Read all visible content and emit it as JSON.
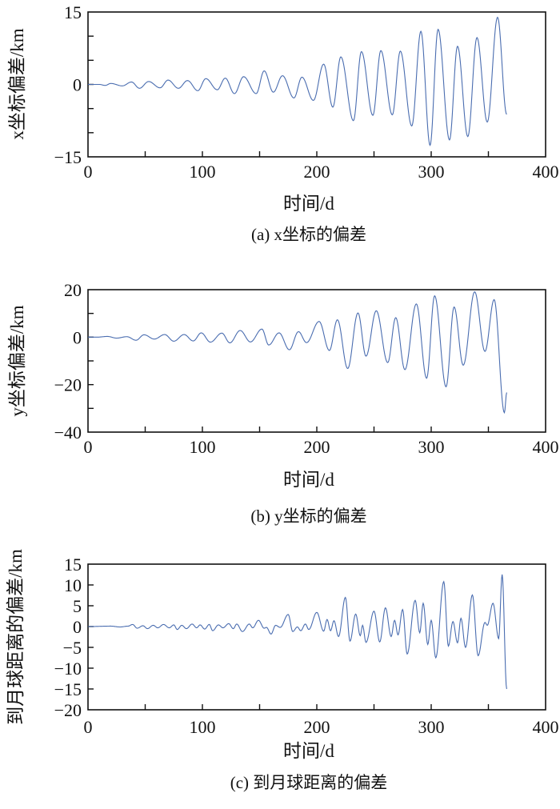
{
  "chart_data": [
    {
      "type": "line",
      "title": "",
      "caption": "(a) x坐标的偏差",
      "xlabel": "时间/d",
      "ylabel": "x坐标偏差/km",
      "xlim": [
        0,
        400
      ],
      "ylim": [
        -15,
        15
      ],
      "xticks": [
        0,
        100,
        200,
        300,
        400
      ],
      "xminor": [
        50,
        150,
        250,
        350
      ],
      "yticks": [
        -15,
        0,
        15
      ],
      "yminor": [
        -10,
        -5,
        5,
        10
      ],
      "grid": false,
      "color": "#4a6db0",
      "series": [
        {
          "name": "x",
          "extrema": [
            [
              0,
              0
            ],
            [
              10,
              0
            ],
            [
              15,
              -0.2
            ],
            [
              20,
              0.2
            ],
            [
              30,
              -0.3
            ],
            [
              38,
              0.5
            ],
            [
              45,
              -0.8
            ],
            [
              53,
              0.6
            ],
            [
              63,
              -0.7
            ],
            [
              70,
              0.9
            ],
            [
              79,
              -0.8
            ],
            [
              87,
              0.8
            ],
            [
              96,
              -1.3
            ],
            [
              103,
              1.2
            ],
            [
              113,
              -1.1
            ],
            [
              120,
              1.3
            ],
            [
              128,
              -1.9
            ],
            [
              136,
              1.6
            ],
            [
              147,
              -1.9
            ],
            [
              154,
              2.8
            ],
            [
              162,
              -1.6
            ],
            [
              170,
              1.8
            ],
            [
              180,
              -2.8
            ],
            [
              187,
              1.5
            ],
            [
              197,
              -3.3
            ],
            [
              206,
              4.2
            ],
            [
              214,
              -4.7
            ],
            [
              221,
              5.7
            ],
            [
              232,
              -7.5
            ],
            [
              239,
              6.8
            ],
            [
              249,
              -6.4
            ],
            [
              256,
              7.0
            ],
            [
              266,
              -6.3
            ],
            [
              273,
              6.9
            ],
            [
              283,
              -8.6
            ],
            [
              291,
              11.0
            ],
            [
              299,
              -12.6
            ],
            [
              306,
              11.4
            ],
            [
              316,
              -11.5
            ],
            [
              323,
              7.9
            ],
            [
              332,
              -10.8
            ],
            [
              340,
              9.7
            ],
            [
              349,
              -7.8
            ],
            [
              358,
              13.9
            ],
            [
              366,
              -6.2
            ]
          ]
        }
      ]
    },
    {
      "type": "line",
      "title": "",
      "caption": "(b) y坐标的偏差",
      "xlabel": "时间/d",
      "ylabel": "y坐标偏差/km",
      "xlim": [
        0,
        400
      ],
      "ylim": [
        -40,
        20
      ],
      "xticks": [
        0,
        100,
        200,
        300,
        400
      ],
      "xminor": [
        50,
        150,
        250,
        350
      ],
      "yticks": [
        -40,
        -20,
        0,
        20
      ],
      "yminor": [
        -30,
        -10,
        10
      ],
      "grid": false,
      "color": "#4a6db0",
      "series": [
        {
          "name": "y",
          "extrema": [
            [
              0,
              0
            ],
            [
              8,
              0
            ],
            [
              17,
              0.3
            ],
            [
              25,
              -0.4
            ],
            [
              34,
              0.2
            ],
            [
              42,
              -1.3
            ],
            [
              49,
              1.0
            ],
            [
              58,
              -0.8
            ],
            [
              67,
              1.1
            ],
            [
              75,
              -1.7
            ],
            [
              84,
              1.1
            ],
            [
              92,
              -1.6
            ],
            [
              99,
              1.8
            ],
            [
              107,
              -2.1
            ],
            [
              117,
              1.7
            ],
            [
              124,
              -2.4
            ],
            [
              133,
              2.8
            ],
            [
              142,
              -2.0
            ],
            [
              152,
              3.4
            ],
            [
              158,
              -3.3
            ],
            [
              167,
              1.8
            ],
            [
              176,
              -5.3
            ],
            [
              184,
              2.3
            ],
            [
              191,
              -2.3
            ],
            [
              202,
              6.6
            ],
            [
              211,
              -5.6
            ],
            [
              218,
              7.3
            ],
            [
              227,
              -13.2
            ],
            [
              236,
              10.2
            ],
            [
              243,
              -8.0
            ],
            [
              252,
              11.1
            ],
            [
              262,
              -10.7
            ],
            [
              269,
              8.2
            ],
            [
              277,
              -13.7
            ],
            [
              287,
              14.0
            ],
            [
              296,
              -17.3
            ],
            [
              303,
              17.4
            ],
            [
              313,
              -20.9
            ],
            [
              320,
              12.7
            ],
            [
              328,
              -11.8
            ],
            [
              338,
              19.1
            ],
            [
              347,
              -6.0
            ],
            [
              355,
              15.8
            ],
            [
              364,
              -31.8
            ],
            [
              366,
              -23.3
            ]
          ]
        }
      ]
    },
    {
      "type": "line",
      "title": "",
      "caption": "(c) 到月球距离的偏差",
      "xlabel": "时间/d",
      "ylabel": "到月球距离的偏差/km",
      "xlim": [
        0,
        400
      ],
      "ylim": [
        -20,
        15
      ],
      "xticks": [
        0,
        100,
        200,
        300,
        400
      ],
      "xminor": [
        50,
        150,
        250,
        350
      ],
      "yticks": [
        -20,
        -15,
        -10,
        -5,
        0,
        5,
        10,
        15
      ],
      "yminor": [],
      "grid": false,
      "color": "#4a6db0",
      "series": [
        {
          "name": "distance",
          "extrema": [
            [
              0,
              0
            ],
            [
              20,
              0.1
            ],
            [
              28,
              -0.1
            ],
            [
              35,
              0.1
            ],
            [
              39,
              0.5
            ],
            [
              43,
              -0.4
            ],
            [
              48,
              0.2
            ],
            [
              52,
              -0.5
            ],
            [
              57,
              0.3
            ],
            [
              61,
              -0.3
            ],
            [
              66,
              0.5
            ],
            [
              71,
              -0.3
            ],
            [
              75,
              0.4
            ],
            [
              78,
              -0.7
            ],
            [
              82,
              0.3
            ],
            [
              86,
              -0.5
            ],
            [
              91,
              0.6
            ],
            [
              95,
              -0.3
            ],
            [
              98,
              0.4
            ],
            [
              102,
              -0.6
            ],
            [
              106,
              0.5
            ],
            [
              109,
              -1.0
            ],
            [
              114,
              0.4
            ],
            [
              118,
              -0.3
            ],
            [
              123,
              0.7
            ],
            [
              127,
              -0.5
            ],
            [
              130,
              0.6
            ],
            [
              135,
              -1.2
            ],
            [
              141,
              0.6
            ],
            [
              144,
              -0.3
            ],
            [
              149,
              1.5
            ],
            [
              154,
              -0.4
            ],
            [
              156,
              -0.2
            ],
            [
              160,
              -1.8
            ],
            [
              164,
              0.3
            ],
            [
              168,
              -0.2
            ],
            [
              175,
              2.9
            ],
            [
              179,
              -1.2
            ],
            [
              183,
              -0.1
            ],
            [
              186,
              -1.0
            ],
            [
              190,
              0.6
            ],
            [
              193,
              -0.7
            ],
            [
              200,
              3.4
            ],
            [
              206,
              -1.1
            ],
            [
              209,
              1.7
            ],
            [
              212,
              -1.0
            ],
            [
              215,
              1.4
            ],
            [
              219,
              -2.4
            ],
            [
              225,
              7.0
            ],
            [
              229,
              -3.5
            ],
            [
              234,
              3.0
            ],
            [
              238,
              -2.2
            ],
            [
              240,
              0.3
            ],
            [
              243,
              -3.8
            ],
            [
              250,
              3.7
            ],
            [
              255,
              -3.7
            ],
            [
              260,
              4.5
            ],
            [
              265,
              -2.4
            ],
            [
              268,
              1.5
            ],
            [
              271,
              -2.0
            ],
            [
              275,
              4.1
            ],
            [
              279,
              -6.6
            ],
            [
              286,
              6.3
            ],
            [
              290,
              -1.5
            ],
            [
              293,
              5.6
            ],
            [
              297,
              -4.3
            ],
            [
              300,
              1.5
            ],
            [
              304,
              -7.5
            ],
            [
              311,
              10.8
            ],
            [
              315,
              -4.7
            ],
            [
              319,
              1.2
            ],
            [
              323,
              -3.9
            ],
            [
              326,
              2.0
            ],
            [
              330,
              -5.0
            ],
            [
              336,
              7.6
            ],
            [
              341,
              -7.0
            ],
            [
              347,
              1.0
            ],
            [
              349,
              0.3
            ],
            [
              354,
              5.6
            ],
            [
              359,
              -2.9
            ],
            [
              362,
              12.5
            ],
            [
              366,
              -15.0
            ]
          ]
        }
      ]
    }
  ]
}
